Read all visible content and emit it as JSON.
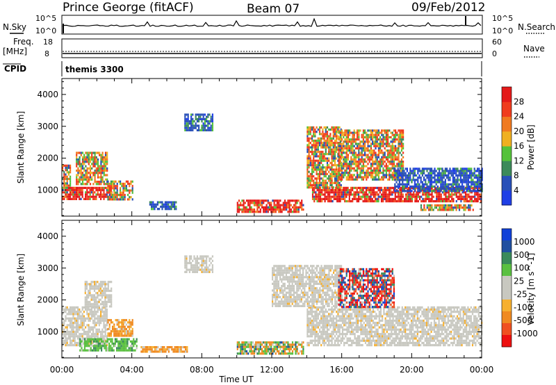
{
  "header": {
    "station": "Prince George (fitACF)",
    "beam": "Beam 07",
    "date": "09/Feb/2012"
  },
  "aux": {
    "nsky_label": "N.Sky",
    "nsky_ticks": [
      "10^5",
      "10^0"
    ],
    "nsearch_label": "N.Search",
    "nsearch_ticks": [
      "10^5",
      "10^0"
    ],
    "freq_label": "Freq.",
    "freq_unit": "[MHz]",
    "freq_ticks": [
      "18",
      "8"
    ],
    "nave_label": "Nave",
    "nave_ticks": [
      "60",
      "0"
    ],
    "cpid_label": "CPID",
    "cpid_value": "themis 3300"
  },
  "x_axis": {
    "title": "Time UT",
    "ticks": [
      "00:00",
      "04:00",
      "08:00",
      "12:00",
      "16:00",
      "20:00",
      "00:00"
    ]
  },
  "colors": {
    "power": [
      "#1f3fe6",
      "#2850b8",
      "#3c8a5a",
      "#55c23a",
      "#f0b020",
      "#f07a20",
      "#f03c1e",
      "#e41a1a"
    ],
    "velocity": [
      "#ee1010",
      "#f05020",
      "#f08a20",
      "#f6b030",
      "#c8c8c0",
      "#c8c8c0",
      "#5ac040",
      "#3a8a5a",
      "#2050a0",
      "#1040d8"
    ]
  },
  "chart_data": [
    {
      "type": "heatmap",
      "title": "",
      "xlabel": "",
      "ylabel": "Slant Range [km]",
      "y_ticks": [
        "1000",
        "2000",
        "3000",
        "4000"
      ],
      "ylim": [
        180,
        4500
      ],
      "xlim_hours": [
        0,
        24
      ],
      "colorbar": {
        "label": "Power [dB]",
        "ticks": [
          "4",
          "8",
          "12",
          "16",
          "20",
          "24",
          "28"
        ]
      },
      "regions": [
        {
          "t0": 0.0,
          "t1": 2.8,
          "r0": 700,
          "r1": 1100,
          "level": "strong"
        },
        {
          "t0": 0.0,
          "t1": 0.5,
          "r0": 1100,
          "r1": 1800,
          "level": "medium"
        },
        {
          "t0": 0.8,
          "t1": 2.6,
          "r0": 1200,
          "r1": 2200,
          "level": "medium"
        },
        {
          "t0": 2.6,
          "t1": 4.0,
          "r0": 700,
          "r1": 1300,
          "level": "medium"
        },
        {
          "t0": 5.0,
          "t1": 6.5,
          "r0": 400,
          "r1": 650,
          "level": "weak"
        },
        {
          "t0": 7.0,
          "t1": 8.6,
          "r0": 2900,
          "r1": 3400,
          "level": "weak"
        },
        {
          "t0": 10.0,
          "t1": 13.8,
          "r0": 350,
          "r1": 700,
          "level": "strong"
        },
        {
          "t0": 14.3,
          "t1": 24.0,
          "r0": 650,
          "r1": 1100,
          "level": "strong"
        },
        {
          "t0": 14.0,
          "t1": 16.0,
          "r0": 1100,
          "r1": 3000,
          "level": "medium"
        },
        {
          "t0": 15.8,
          "t1": 19.5,
          "r0": 1300,
          "r1": 2900,
          "level": "medium"
        },
        {
          "t0": 19.0,
          "t1": 24.0,
          "r0": 1000,
          "r1": 1700,
          "level": "weak"
        },
        {
          "t0": 20.5,
          "t1": 23.5,
          "r0": 350,
          "r1": 550,
          "level": "medium"
        }
      ]
    },
    {
      "type": "heatmap",
      "title": "",
      "xlabel": "Time UT",
      "ylabel": "Slant Range [km]",
      "y_ticks": [
        "1000",
        "2000",
        "3000",
        "4000"
      ],
      "ylim": [
        180,
        4500
      ],
      "xlim_hours": [
        0,
        24
      ],
      "colorbar": {
        "label": "Velocity [m s^-1]",
        "ticks": [
          "-1000",
          "-500",
          "-100",
          "-25",
          "25",
          "100",
          "500",
          "1000"
        ]
      },
      "regions": [
        {
          "t0": 0.0,
          "t1": 2.6,
          "r0": 600,
          "r1": 1800,
          "level": "ground"
        },
        {
          "t0": 1.3,
          "t1": 2.8,
          "r0": 1800,
          "r1": 2600,
          "level": "ground"
        },
        {
          "t0": 2.6,
          "t1": 4.0,
          "r0": 900,
          "r1": 1400,
          "level": "towards-weak"
        },
        {
          "t0": 1.0,
          "t1": 4.3,
          "r0": 400,
          "r1": 800,
          "level": "away-weak"
        },
        {
          "t0": 4.5,
          "t1": 7.2,
          "r0": 350,
          "r1": 550,
          "level": "towards-weak"
        },
        {
          "t0": 7.0,
          "t1": 8.6,
          "r0": 2900,
          "r1": 3400,
          "level": "ground"
        },
        {
          "t0": 10.0,
          "t1": 13.8,
          "r0": 350,
          "r1": 700,
          "level": "mixed"
        },
        {
          "t0": 14.0,
          "t1": 24.0,
          "r0": 600,
          "r1": 1800,
          "level": "ground"
        },
        {
          "t0": 12.0,
          "t1": 16.0,
          "r0": 1800,
          "r1": 3100,
          "level": "ground"
        },
        {
          "t0": 15.8,
          "t1": 19.0,
          "r0": 1800,
          "r1": 3000,
          "level": "away-strong"
        }
      ]
    }
  ]
}
